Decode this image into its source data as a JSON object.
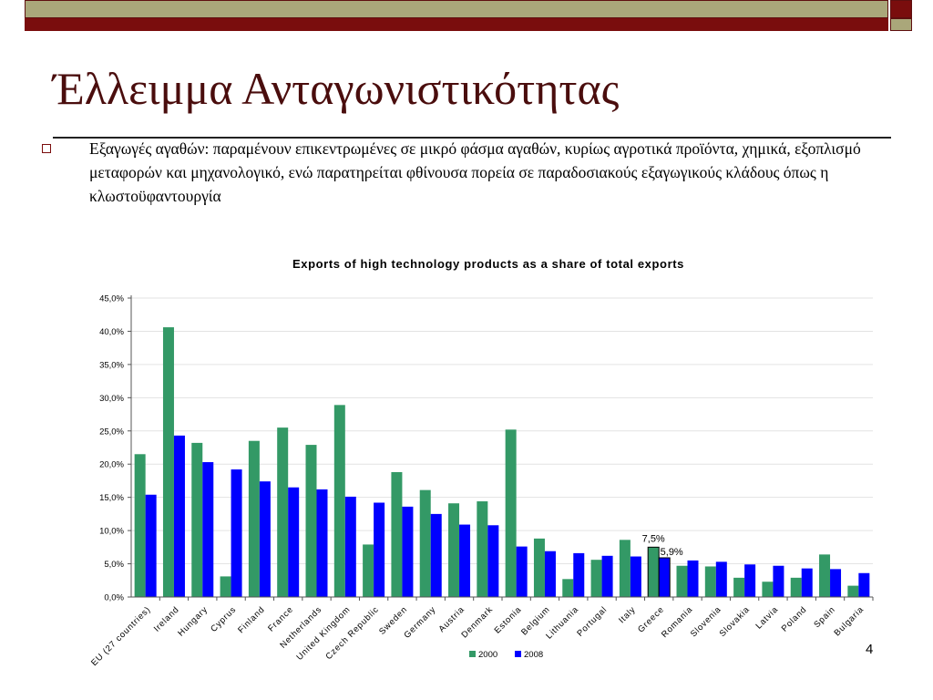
{
  "slide": {
    "title": "Έλλειμμα Ανταγωνιστικότητας",
    "bullet": "Εξαγωγές αγαθών: παραμένουν επικεντρωμένες σε μικρό φάσμα αγαθών, κυρίως αγροτικά προϊόντα, χημικά, εξοπλισμό μεταφορών και μηχανολογικό, ενώ παρατηρείται φθίνουσα πορεία σε παραδοσιακούς εξαγωγικούς κλάδους όπως η κλωστοϋφαντουργία",
    "page_number": "4"
  },
  "colors": {
    "accent_dark_red": "#7a0d0d",
    "accent_olive": "#aaa77a",
    "series_2000": "#339966",
    "series_2008": "#0000ff"
  },
  "chart_data": {
    "type": "bar",
    "title": "Exports of high technology products as a share of total exports",
    "categories": [
      "EU (27 countries)",
      "Ireland",
      "Hungary",
      "Cyprus",
      "Finland",
      "France",
      "Netherlands",
      "United Kingdom",
      "Czech Republic",
      "Sweden",
      "Germany",
      "Austria",
      "Denmark",
      "Estonia",
      "Belgium",
      "Lithuania",
      "Portugal",
      "Italy",
      "Greece",
      "Romania",
      "Slovenia",
      "Slovakia",
      "Latvia",
      "Poland",
      "Spain",
      "Bulgaria"
    ],
    "series": [
      {
        "name": "2000",
        "values": [
          21.5,
          40.6,
          23.2,
          3.1,
          23.5,
          25.5,
          22.9,
          28.9,
          7.9,
          18.8,
          16.1,
          14.1,
          14.4,
          25.2,
          8.8,
          2.7,
          5.6,
          8.6,
          7.5,
          4.7,
          4.6,
          2.9,
          2.3,
          2.9,
          6.4,
          1.7
        ]
      },
      {
        "name": "2008",
        "values": [
          15.4,
          24.3,
          20.3,
          19.2,
          17.4,
          16.5,
          16.2,
          15.1,
          14.2,
          13.6,
          12.5,
          10.9,
          10.8,
          7.6,
          6.9,
          6.6,
          6.2,
          6.1,
          5.9,
          5.5,
          5.3,
          4.9,
          4.7,
          4.3,
          4.2,
          3.6
        ]
      }
    ],
    "ylim": [
      0,
      45
    ],
    "yticks": [
      "0,0%",
      "5,0%",
      "10,0%",
      "15,0%",
      "20,0%",
      "25,0%",
      "30,0%",
      "35,0%",
      "40,0%",
      "45,0%"
    ],
    "annotations": [
      {
        "category": "Greece",
        "series": "2000",
        "text": "7,5%"
      },
      {
        "category": "Greece",
        "series": "2008",
        "text": "5,9%"
      }
    ],
    "highlight_category": "Greece",
    "grid": true,
    "legend": "bottom-center"
  }
}
